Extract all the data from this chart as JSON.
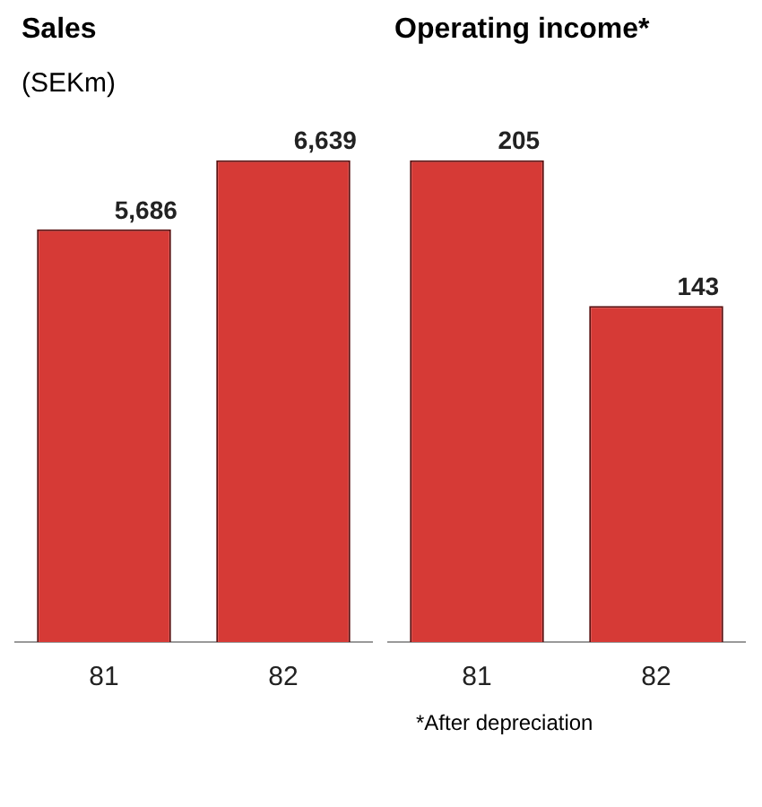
{
  "chart_data": [
    {
      "type": "bar",
      "title": "Sales",
      "subtitle": "(SEKm)",
      "categories": [
        "81",
        "82"
      ],
      "values": [
        5686,
        6639
      ],
      "value_labels": [
        "5,686",
        "6,639"
      ],
      "color": "#d63a36",
      "grid": false,
      "legend": false
    },
    {
      "type": "bar",
      "title": "Operating income*",
      "categories": [
        "81",
        "82"
      ],
      "values": [
        205,
        143
      ],
      "value_labels": [
        "205",
        "143"
      ],
      "color": "#d63a36",
      "grid": false,
      "legend": false,
      "annotations": [
        "*After depreciation"
      ]
    }
  ]
}
